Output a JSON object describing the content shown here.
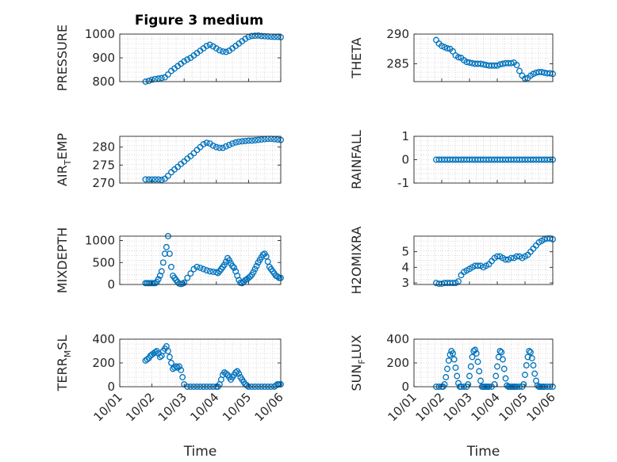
{
  "figure": {
    "title": "Figure 3 medium",
    "marker_color": "#0072bd"
  },
  "chart_data": [
    {
      "type": "scatter",
      "ylabel": "PRESSURE",
      "xlim": [
        "10/01",
        "10/06"
      ],
      "ylim": [
        800,
        1000
      ],
      "yticks": [
        "800",
        "900",
        "1000"
      ],
      "xticks": [],
      "grid": true,
      "x": [
        1.8,
        1.9,
        2.0,
        2.1,
        2.2,
        2.3,
        2.4,
        2.5,
        2.6,
        2.7,
        2.8,
        2.9,
        3.0,
        3.1,
        3.2,
        3.3,
        3.4,
        3.5,
        3.6,
        3.7,
        3.8,
        3.9,
        4.0,
        4.1,
        4.2,
        4.3,
        4.4,
        4.5,
        4.6,
        4.7,
        4.8,
        4.9,
        5.0,
        5.1,
        5.2,
        5.3,
        5.4,
        5.5,
        5.6,
        5.7,
        5.8,
        5.9,
        6.0
      ],
      "y": [
        800,
        803,
        808,
        811,
        813,
        815,
        818,
        830,
        845,
        855,
        865,
        875,
        885,
        893,
        900,
        910,
        920,
        930,
        940,
        950,
        955,
        948,
        940,
        932,
        927,
        925,
        930,
        940,
        950,
        960,
        970,
        980,
        988,
        992,
        993,
        994,
        992,
        991,
        990,
        989,
        988,
        988,
        987
      ]
    },
    {
      "type": "scatter",
      "ylabel": "THETA",
      "xlim": [
        "10/01",
        "10/06"
      ],
      "ylim": [
        282,
        290
      ],
      "yticks": [
        "285",
        "290"
      ],
      "xticks": [],
      "grid": true,
      "x": [
        1.8,
        1.9,
        2.0,
        2.1,
        2.2,
        2.3,
        2.4,
        2.5,
        2.6,
        2.7,
        2.8,
        2.9,
        3.0,
        3.1,
        3.2,
        3.3,
        3.4,
        3.5,
        3.6,
        3.7,
        3.8,
        3.9,
        4.0,
        4.1,
        4.2,
        4.3,
        4.4,
        4.5,
        4.6,
        4.7,
        4.8,
        4.9,
        5.0,
        5.1,
        5.2,
        5.3,
        5.4,
        5.5,
        5.6,
        5.7,
        5.8,
        5.9,
        6.0
      ],
      "y": [
        289,
        288.4,
        288.0,
        287.8,
        287.6,
        287.5,
        287.1,
        286.4,
        286.1,
        286.0,
        285.6,
        285.3,
        285.2,
        285.1,
        285.0,
        285.0,
        285.0,
        284.9,
        284.8,
        284.7,
        284.7,
        284.7,
        284.7,
        284.9,
        285.0,
        285.1,
        285.1,
        285.1,
        285.2,
        284.8,
        283.8,
        283.0,
        282.5,
        282.6,
        283.0,
        283.3,
        283.5,
        283.6,
        283.6,
        283.5,
        283.4,
        283.4,
        283.3
      ]
    },
    {
      "type": "scatter",
      "ylabel": "AIR",
      "ylabel_sub": "T",
      "ylabel_rest": "EMP",
      "xlim": [
        "10/01",
        "10/06"
      ],
      "ylim": [
        270,
        283
      ],
      "yticks": [
        "270",
        "275",
        "280"
      ],
      "xticks": [],
      "grid": true,
      "x": [
        1.8,
        1.9,
        2.0,
        2.1,
        2.2,
        2.3,
        2.4,
        2.5,
        2.6,
        2.7,
        2.8,
        2.9,
        3.0,
        3.1,
        3.2,
        3.3,
        3.4,
        3.5,
        3.6,
        3.7,
        3.8,
        3.9,
        4.0,
        4.1,
        4.2,
        4.3,
        4.4,
        4.5,
        4.6,
        4.7,
        4.8,
        4.9,
        5.0,
        5.1,
        5.2,
        5.3,
        5.4,
        5.5,
        5.6,
        5.7,
        5.8,
        5.9,
        6.0
      ],
      "y": [
        271.0,
        271.0,
        271.0,
        271.0,
        271.0,
        270.9,
        271.2,
        272.0,
        273.0,
        273.8,
        274.5,
        275.3,
        276.0,
        276.8,
        277.5,
        278.3,
        279.2,
        280.0,
        280.8,
        281.2,
        281.0,
        280.4,
        280.0,
        279.8,
        279.8,
        280.2,
        280.6,
        281.0,
        281.3,
        281.5,
        281.6,
        281.7,
        281.8,
        281.8,
        281.9,
        282.0,
        282.1,
        282.2,
        282.3,
        282.3,
        282.2,
        282.1,
        282.0
      ]
    },
    {
      "type": "scatter",
      "ylabel": "RAINFALL",
      "xlim": [
        "10/01",
        "10/06"
      ],
      "ylim": [
        -1,
        1
      ],
      "yticks": [
        "-1",
        "0",
        "1"
      ],
      "xticks": [],
      "grid": true,
      "x": [
        1.8,
        1.9,
        2.0,
        2.1,
        2.2,
        2.3,
        2.4,
        2.5,
        2.6,
        2.7,
        2.8,
        2.9,
        3.0,
        3.1,
        3.2,
        3.3,
        3.4,
        3.5,
        3.6,
        3.7,
        3.8,
        3.9,
        4.0,
        4.1,
        4.2,
        4.3,
        4.4,
        4.5,
        4.6,
        4.7,
        4.8,
        4.9,
        5.0,
        5.1,
        5.2,
        5.3,
        5.4,
        5.5,
        5.6,
        5.7,
        5.8,
        5.9,
        6.0
      ],
      "y": [
        0,
        0,
        0,
        0,
        0,
        0,
        0,
        0,
        0,
        0,
        0,
        0,
        0,
        0,
        0,
        0,
        0,
        0,
        0,
        0,
        0,
        0,
        0,
        0,
        0,
        0,
        0,
        0,
        0,
        0,
        0,
        0,
        0,
        0,
        0,
        0,
        0,
        0,
        0,
        0,
        0,
        0,
        0
      ]
    },
    {
      "type": "scatter",
      "ylabel": "MIXDEPTH",
      "xlim": [
        "10/01",
        "10/06"
      ],
      "ylim": [
        0,
        1100
      ],
      "yticks": [
        "0",
        "500",
        "1000"
      ],
      "xticks": [],
      "grid": true,
      "x": [
        1.8,
        1.85,
        1.9,
        1.95,
        2.0,
        2.05,
        2.1,
        2.15,
        2.2,
        2.25,
        2.3,
        2.35,
        2.4,
        2.45,
        2.5,
        2.55,
        2.6,
        2.65,
        2.7,
        2.75,
        2.8,
        2.85,
        2.9,
        2.95,
        3.0,
        3.1,
        3.2,
        3.3,
        3.4,
        3.5,
        3.6,
        3.7,
        3.8,
        3.9,
        4.0,
        4.05,
        4.1,
        4.15,
        4.2,
        4.25,
        4.3,
        4.35,
        4.4,
        4.45,
        4.5,
        4.55,
        4.6,
        4.65,
        4.7,
        4.75,
        4.8,
        4.85,
        4.9,
        4.95,
        5.0,
        5.05,
        5.1,
        5.15,
        5.2,
        5.25,
        5.3,
        5.35,
        5.4,
        5.45,
        5.5,
        5.55,
        5.6,
        5.65,
        5.7,
        5.75,
        5.8,
        5.85,
        5.9,
        5.95,
        6.0
      ],
      "y": [
        30,
        30,
        30,
        30,
        30,
        30,
        30,
        60,
        120,
        200,
        300,
        500,
        700,
        850,
        1100,
        700,
        400,
        200,
        150,
        100,
        50,
        20,
        10,
        20,
        40,
        150,
        250,
        350,
        400,
        380,
        350,
        320,
        300,
        290,
        280,
        260,
        300,
        350,
        400,
        450,
        520,
        600,
        550,
        480,
        420,
        380,
        300,
        200,
        100,
        40,
        30,
        60,
        100,
        120,
        150,
        180,
        220,
        280,
        350,
        420,
        500,
        560,
        620,
        680,
        700,
        640,
        520,
        400,
        350,
        300,
        250,
        200,
        180,
        150,
        150
      ]
    },
    {
      "type": "scatter",
      "ylabel": "H2OMIXRA",
      "xlim": [
        "10/01",
        "10/06"
      ],
      "ylim": [
        2.9,
        6.0
      ],
      "yticks": [
        "3",
        "4",
        "5"
      ],
      "xticks": [],
      "grid": true,
      "x": [
        1.8,
        1.9,
        2.0,
        2.1,
        2.2,
        2.3,
        2.4,
        2.5,
        2.6,
        2.7,
        2.8,
        2.9,
        3.0,
        3.1,
        3.2,
        3.3,
        3.4,
        3.5,
        3.6,
        3.7,
        3.8,
        3.9,
        4.0,
        4.1,
        4.2,
        4.3,
        4.4,
        4.5,
        4.6,
        4.7,
        4.8,
        4.9,
        5.0,
        5.1,
        5.2,
        5.3,
        5.4,
        5.5,
        5.6,
        5.7,
        5.8,
        5.9,
        6.0
      ],
      "y": [
        3.0,
        2.95,
        2.95,
        3.0,
        3.0,
        3.0,
        3.0,
        3.0,
        3.1,
        3.5,
        3.7,
        3.8,
        3.9,
        4.0,
        4.1,
        4.1,
        4.1,
        4.0,
        4.1,
        4.2,
        4.4,
        4.6,
        4.7,
        4.7,
        4.6,
        4.5,
        4.5,
        4.6,
        4.6,
        4.7,
        4.7,
        4.6,
        4.7,
        4.8,
        5.0,
        5.2,
        5.4,
        5.6,
        5.7,
        5.8,
        5.85,
        5.85,
        5.8
      ]
    },
    {
      "type": "scatter",
      "ylabel": "TERR",
      "ylabel_sub": "M",
      "ylabel_rest": "SL",
      "xlim": [
        "10/01",
        "10/06"
      ],
      "ylim": [
        0,
        400
      ],
      "yticks": [
        "0",
        "200",
        "400"
      ],
      "xticks": [
        "10/01",
        "10/02",
        "10/03",
        "10/04",
        "10/05",
        "10/06"
      ],
      "xlabel": "Time",
      "grid": true,
      "x": [
        1.8,
        1.85,
        1.9,
        1.95,
        2.0,
        2.05,
        2.1,
        2.15,
        2.2,
        2.25,
        2.3,
        2.35,
        2.4,
        2.45,
        2.5,
        2.55,
        2.6,
        2.65,
        2.7,
        2.75,
        2.8,
        2.85,
        2.9,
        2.95,
        3.0,
        3.1,
        3.2,
        3.3,
        3.4,
        3.5,
        3.6,
        3.7,
        3.8,
        3.9,
        4.0,
        4.05,
        4.1,
        4.15,
        4.2,
        4.25,
        4.3,
        4.35,
        4.4,
        4.45,
        4.5,
        4.55,
        4.6,
        4.65,
        4.7,
        4.75,
        4.8,
        4.85,
        4.9,
        4.95,
        5.0,
        5.1,
        5.2,
        5.3,
        5.4,
        5.5,
        5.6,
        5.7,
        5.8,
        5.85,
        5.9,
        5.95,
        6.0
      ],
      "y": [
        220,
        230,
        240,
        260,
        270,
        280,
        290,
        300,
        280,
        250,
        260,
        300,
        320,
        340,
        300,
        250,
        200,
        150,
        160,
        170,
        160,
        170,
        140,
        80,
        20,
        0,
        0,
        0,
        0,
        0,
        0,
        0,
        0,
        0,
        0,
        0,
        20,
        60,
        100,
        120,
        110,
        100,
        80,
        60,
        80,
        100,
        120,
        130,
        110,
        80,
        60,
        40,
        20,
        10,
        0,
        0,
        0,
        0,
        0,
        0,
        0,
        0,
        0,
        10,
        20,
        20,
        20
      ]
    },
    {
      "type": "scatter",
      "ylabel": "SUN",
      "ylabel_sub": "F",
      "ylabel_rest": "LUX",
      "xlim": [
        "10/01",
        "10/06"
      ],
      "ylim": [
        0,
        400
      ],
      "yticks": [
        "0",
        "200",
        "400"
      ],
      "xticks": [
        "10/01",
        "10/02",
        "10/03",
        "10/04",
        "10/05",
        "10/06"
      ],
      "xlabel": "Time",
      "grid": true,
      "x": [
        1.8,
        1.9,
        2.0,
        2.05,
        2.1,
        2.15,
        2.2,
        2.25,
        2.3,
        2.35,
        2.4,
        2.45,
        2.5,
        2.55,
        2.6,
        2.65,
        2.7,
        2.8,
        2.9,
        2.95,
        3.0,
        3.05,
        3.1,
        3.15,
        3.2,
        3.25,
        3.3,
        3.35,
        3.4,
        3.45,
        3.5,
        3.55,
        3.6,
        3.65,
        3.7,
        3.8,
        3.9,
        3.95,
        4.0,
        4.05,
        4.1,
        4.15,
        4.2,
        4.25,
        4.3,
        4.35,
        4.4,
        4.45,
        4.5,
        4.55,
        4.6,
        4.65,
        4.7,
        4.8,
        4.9,
        4.95,
        5.0,
        5.05,
        5.1,
        5.15,
        5.2,
        5.25,
        5.3,
        5.35,
        5.4,
        5.45,
        5.5,
        5.55,
        5.6,
        5.65,
        5.7,
        5.8,
        5.9,
        6.0
      ],
      "y": [
        0,
        0,
        0,
        0,
        20,
        80,
        150,
        220,
        270,
        300,
        280,
        230,
        160,
        90,
        30,
        0,
        0,
        0,
        0,
        20,
        90,
        170,
        250,
        300,
        310,
        280,
        210,
        130,
        50,
        0,
        0,
        0,
        0,
        0,
        0,
        0,
        20,
        90,
        170,
        250,
        300,
        290,
        230,
        150,
        70,
        10,
        0,
        0,
        0,
        0,
        0,
        0,
        0,
        0,
        0,
        20,
        100,
        180,
        250,
        300,
        290,
        240,
        180,
        110,
        50,
        10,
        0,
        0,
        0,
        0,
        0,
        0,
        0,
        0
      ]
    }
  ]
}
